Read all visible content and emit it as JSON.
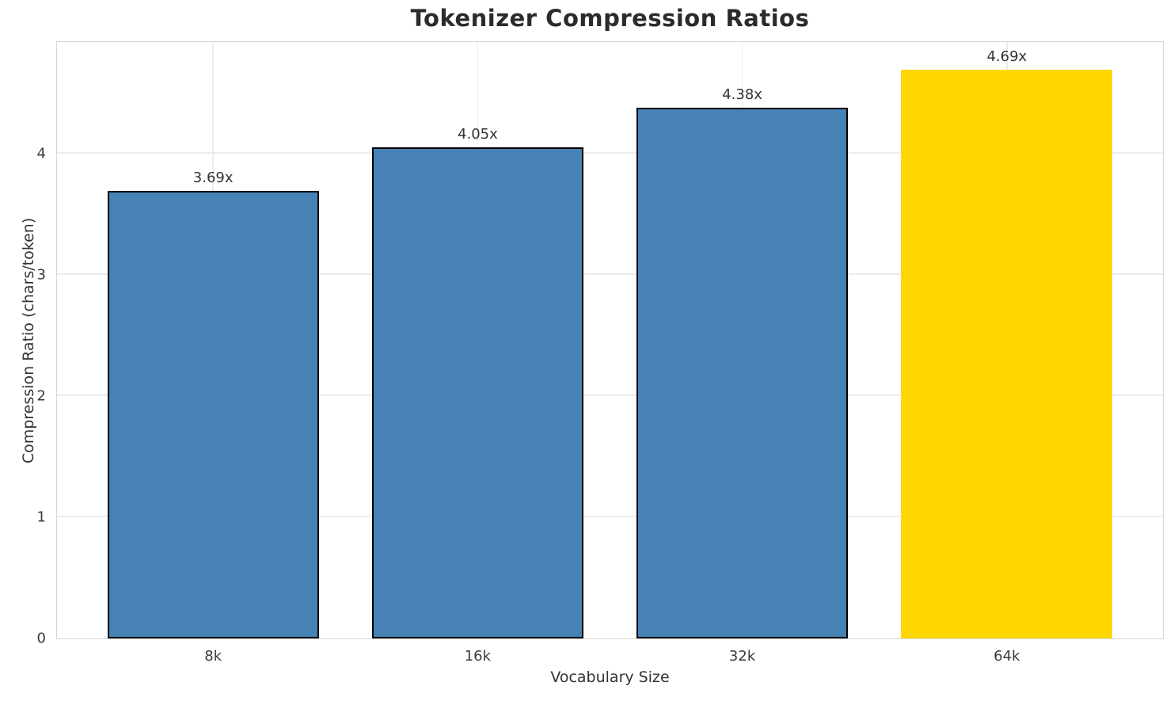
{
  "chart_data": {
    "type": "bar",
    "title": "Tokenizer Compression Ratios",
    "xlabel": "Vocabulary Size",
    "ylabel": "Compression Ratio (chars/token)",
    "categories": [
      "8k",
      "16k",
      "32k",
      "64k"
    ],
    "values": [
      3.69,
      4.05,
      4.38,
      4.69
    ],
    "bar_labels": [
      "3.69x",
      "4.05x",
      "4.38x",
      "4.69x"
    ],
    "bar_colors": [
      "#4682B4",
      "#4682B4",
      "#4682B4",
      "#FFD700"
    ],
    "bar_edge_colors": [
      "#000000",
      "#000000",
      "#000000",
      "none"
    ],
    "yticks": [
      0,
      1,
      2,
      3,
      4
    ],
    "ytick_labels": [
      "0",
      "1",
      "2",
      "3",
      "4"
    ],
    "ylim": [
      0,
      4.92
    ],
    "grid": true,
    "legend": "none",
    "colors": {
      "grid": "#ececec",
      "spine": "#d5d5d5",
      "title_text": "#2b2b2b",
      "label_text": "#333333",
      "highlight_bar": "#FFD700",
      "default_bar": "#4682B4"
    }
  }
}
